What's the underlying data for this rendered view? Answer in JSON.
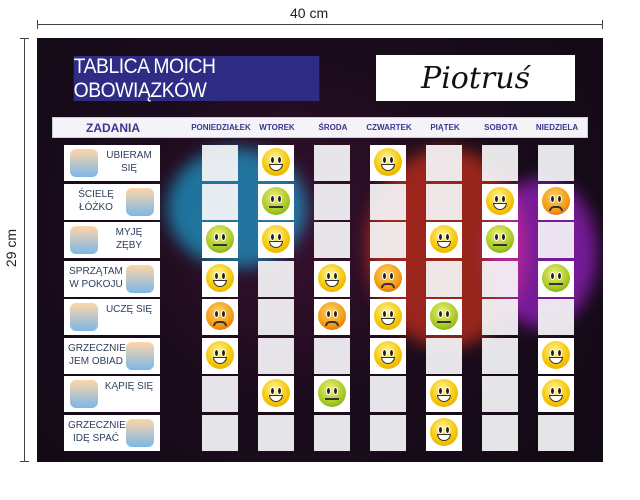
{
  "dimensions": {
    "width": "40 cm",
    "height": "29 cm"
  },
  "title": "TABLICA MOICH OBOWIĄZKÓW",
  "child_name": "Piotruś",
  "header": {
    "tasks_label": "ZADANIA",
    "days": [
      "PONIEDZIAŁEK",
      "WTOREK",
      "ŚRODA",
      "CZWARTEK",
      "PIĄTEK",
      "SOBOTA",
      "NIEDZIELA"
    ]
  },
  "tasks": [
    {
      "label": "UBIERAM SIĘ",
      "icon": "child-dressing-icon",
      "image_side": "left"
    },
    {
      "label": "ŚCIELĘ ŁÓŻKO",
      "icon": "child-making-bed-icon",
      "image_side": "right"
    },
    {
      "label": "MYJĘ ZĘBY",
      "icon": "child-brushing-teeth-icon",
      "image_side": "left"
    },
    {
      "label": "SPRZĄTAM W POKOJU",
      "icon": "child-sweeping-icon",
      "image_side": "right"
    },
    {
      "label": "UCZĘ SIĘ",
      "icon": "children-reading-icon",
      "image_side": "left"
    },
    {
      "label": "GRZECZNIE JEM OBIAD",
      "icon": "child-eating-icon",
      "image_side": "right"
    },
    {
      "label": "KĄPIĘ SIĘ",
      "icon": "child-bathing-icon",
      "image_side": "left"
    },
    {
      "label": "GRZECZNIE IDĘ SPAĆ",
      "icon": "child-sleeping-icon",
      "image_side": "right"
    }
  ],
  "grid": [
    [
      "",
      "happy",
      "",
      "happy",
      "",
      "",
      ""
    ],
    [
      "",
      "neutral",
      "",
      "",
      "",
      "happy",
      "sad"
    ],
    [
      "neutral",
      "happy",
      "",
      "",
      "happy",
      "neutral",
      ""
    ],
    [
      "happy",
      "",
      "happy",
      "sad",
      "",
      "",
      "neutral"
    ],
    [
      "sad",
      "",
      "sad",
      "happy",
      "neutral",
      "",
      ""
    ],
    [
      "happy",
      "",
      "",
      "happy",
      "",
      "",
      "happy"
    ],
    [
      "",
      "happy",
      "neutral",
      "",
      "happy",
      "",
      "happy"
    ],
    [
      "",
      "",
      "",
      "",
      "happy",
      "",
      ""
    ]
  ],
  "colors": {
    "title_bg": "#2f2c85",
    "header_text": "#3b3590",
    "happy": "#f5c400",
    "neutral": "#a6c824",
    "sad": "#f29a10"
  }
}
